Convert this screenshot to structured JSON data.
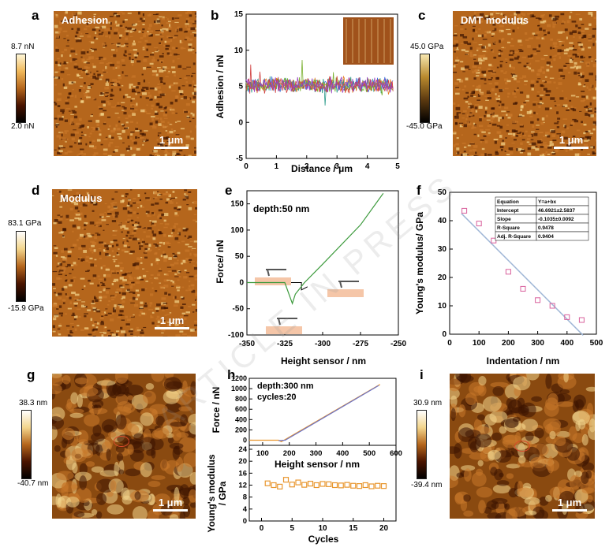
{
  "panels": {
    "a": {
      "letter": "a",
      "title": "Adhesion",
      "cb_top": "8.7 nN",
      "cb_bottom": "2.0 nN",
      "scale": "1 μm"
    },
    "b": {
      "letter": "b",
      "xlabel": "Distance / μm",
      "ylabel": "Adhesion / nN",
      "xticks": [
        "0",
        "1",
        "2",
        "3",
        "4",
        "5"
      ],
      "yticks": [
        "15",
        "10",
        "5",
        "0",
        "-5"
      ]
    },
    "c": {
      "letter": "c",
      "title": "DMT modulus",
      "cb_top": "45.0 GPa",
      "cb_bottom": "-45.0 GPa",
      "scale": "1 μm"
    },
    "d": {
      "letter": "d",
      "title": "Modulus",
      "cb_top": "83.1 GPa",
      "cb_bottom": "-15.9 GPa",
      "scale": "1 μm"
    },
    "e": {
      "letter": "e",
      "annotation": "depth:50 nm",
      "xlabel": "Height sensor / nm",
      "ylabel": "Force/ nN",
      "xticks": [
        "-350",
        "-325",
        "-300",
        "-275",
        "-250"
      ],
      "yticks": [
        "150",
        "100",
        "50",
        "0",
        "-50",
        "-100"
      ]
    },
    "f": {
      "letter": "f",
      "xlabel": "Indentation / nm",
      "ylabel": "Young's modulus/ GPa",
      "xticks": [
        "0",
        "100",
        "200",
        "300",
        "400",
        "500"
      ],
      "yticks": [
        "50",
        "40",
        "30",
        "20",
        "10",
        "0"
      ],
      "fit_table": [
        [
          "Equation",
          "Y=a+bx"
        ],
        [
          "Intercept",
          "46.6921±2.5837"
        ],
        [
          "Slope",
          "-0.1035±0.0092"
        ],
        [
          "R-Square",
          "0.9478"
        ],
        [
          "Adj. R-Square",
          "0.9404"
        ]
      ]
    },
    "g": {
      "letter": "g",
      "cb_top": "38.3 nm",
      "cb_bottom": "-40.7 nm",
      "scale": "1 μm"
    },
    "h": {
      "letter": "h",
      "annotation1": "depth:300 nm",
      "annotation2": "cycles:20",
      "top_xlabel": "Height sensor / nm",
      "top_ylabel": "Force / nN",
      "top_xticks": [
        "100",
        "200",
        "300",
        "400",
        "500",
        "600"
      ],
      "top_yticks": [
        "1200",
        "1000",
        "800",
        "600",
        "400",
        "200",
        "0"
      ],
      "bot_xlabel": "Cycles",
      "bot_ylabel_1": "Young's modulus",
      "bot_ylabel_2": "/ GPa",
      "bot_xticks": [
        "0",
        "5",
        "10",
        "15",
        "20"
      ],
      "bot_yticks": [
        "24",
        "20",
        "16",
        "12",
        "8",
        "4",
        "0"
      ]
    },
    "i": {
      "letter": "i",
      "cb_top": "30.9 nm",
      "cb_bottom": "-39.4 nm",
      "scale": "1 μm"
    }
  },
  "watermark": "ARTICLE IN PRESS",
  "colors": {
    "afm_dark": "#3a1200",
    "afm_mid": "#b5661c",
    "afm_light": "#f3d58c",
    "fit_line": "#9fb6d6",
    "marker_f": "#d9609c",
    "marker_h": "#e8962e",
    "curve_e": "#3c9a3c"
  },
  "chart_data": [
    {
      "type": "line",
      "panel": "b",
      "xlabel": "Distance / μm",
      "ylabel": "Adhesion / nN",
      "xlim": [
        0,
        5
      ],
      "ylim": [
        -5,
        15
      ],
      "series": [
        {
          "values": [
            5.2,
            5.0,
            5.6,
            4.8,
            5.3,
            5.5,
            4.9,
            5.1
          ]
        },
        {
          "values": [
            4.8,
            5.4,
            5.0,
            5.6,
            4.7,
            5.2,
            5.3,
            5.0
          ]
        },
        {
          "values": [
            5.5,
            4.9,
            5.3,
            5.0,
            5.6,
            4.8,
            5.1,
            5.4
          ]
        }
      ]
    },
    {
      "type": "line",
      "panel": "e",
      "xlabel": "Height sensor / nm",
      "ylabel": "Force/ nN",
      "xlim": [
        -350,
        -250
      ],
      "ylim": [
        -100,
        175
      ],
      "series": [
        {
          "x": [
            -350,
            -325,
            -320,
            -318,
            -312,
            -300,
            -275,
            -260
          ],
          "y": [
            0,
            0,
            -40,
            -22,
            0,
            35,
            110,
            170
          ]
        }
      ]
    },
    {
      "type": "scatter",
      "panel": "f",
      "xlabel": "Indentation / nm",
      "ylabel": "Young's modulus/ GPa",
      "xlim": [
        0,
        500
      ],
      "ylim": [
        0,
        50
      ],
      "x": [
        50,
        100,
        150,
        200,
        250,
        300,
        350,
        400,
        450
      ],
      "y": [
        43.5,
        39,
        33,
        22,
        16,
        12,
        10,
        6,
        5
      ],
      "fit": {
        "intercept": 46.6921,
        "slope": -0.1035
      }
    },
    {
      "type": "line",
      "panel": "h-top",
      "xlabel": "Height sensor / nm",
      "ylabel": "Force / nN",
      "xlim": [
        50,
        600
      ],
      "ylim": [
        -100,
        1200
      ],
      "series": [
        {
          "x": [
            50,
            160,
            170,
            180,
            540
          ],
          "y": [
            0,
            0,
            -30,
            0,
            1080
          ]
        }
      ]
    },
    {
      "type": "scatter",
      "panel": "h-bottom",
      "xlabel": "Cycles",
      "ylabel": "Young's modulus / GPa",
      "xlim": [
        -2,
        22
      ],
      "ylim": [
        0,
        24
      ],
      "x": [
        1,
        2,
        3,
        4,
        5,
        6,
        7,
        8,
        9,
        10,
        11,
        12,
        13,
        14,
        15,
        16,
        17,
        18,
        19,
        20
      ],
      "y": [
        12.6,
        12.0,
        11.5,
        13.8,
        12.2,
        12.9,
        12.1,
        12.5,
        12.0,
        12.4,
        12.3,
        12.0,
        11.9,
        12.1,
        11.8,
        11.7,
        12.0,
        11.6,
        11.8,
        11.7
      ]
    }
  ]
}
